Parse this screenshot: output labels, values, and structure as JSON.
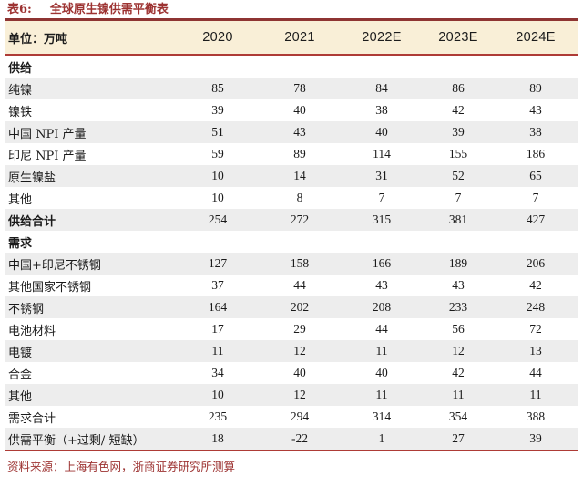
{
  "title": {
    "prefix": "表6:",
    "text": "全球原生镍供需平衡表"
  },
  "colors": {
    "accent_red": "#9D3332",
    "rule_maroon": "#8E3432",
    "rule_red": "#AE3B36",
    "header_band_bg": "#F9EFD7",
    "stripe_bg": "#EDEDED"
  },
  "table": {
    "unit_label": "单位：万吨",
    "years": [
      "2020",
      "2021",
      "2022E",
      "2023E",
      "2024E"
    ],
    "rows": [
      {
        "label": "供给",
        "values": [
          "",
          "",
          "",
          "",
          ""
        ],
        "type": "section",
        "shaded": false
      },
      {
        "label": "纯镍",
        "values": [
          "85",
          "78",
          "84",
          "86",
          "89"
        ],
        "shaded": true
      },
      {
        "label": "镍铁",
        "values": [
          "39",
          "40",
          "38",
          "42",
          "43"
        ],
        "shaded": false
      },
      {
        "label": "中国 NPI 产量",
        "values": [
          "51",
          "43",
          "40",
          "39",
          "38"
        ],
        "shaded": true
      },
      {
        "label": "印尼 NPI 产量",
        "values": [
          "59",
          "89",
          "114",
          "155",
          "186"
        ],
        "shaded": false
      },
      {
        "label": "原生镍盐",
        "values": [
          "10",
          "14",
          "31",
          "52",
          "65"
        ],
        "shaded": true
      },
      {
        "label": "其他",
        "values": [
          "10",
          "8",
          "7",
          "7",
          "7"
        ],
        "shaded": false
      },
      {
        "label": "供给合计",
        "values": [
          "254",
          "272",
          "315",
          "381",
          "427"
        ],
        "shaded": true,
        "bold": true
      },
      {
        "label": "需求",
        "values": [
          "",
          "",
          "",
          "",
          ""
        ],
        "type": "section",
        "shaded": false
      },
      {
        "label": "中国+印尼不锈钢",
        "values": [
          "127",
          "158",
          "166",
          "189",
          "206"
        ],
        "shaded": true
      },
      {
        "label": "其他国家不锈钢",
        "values": [
          "37",
          "44",
          "43",
          "43",
          "42"
        ],
        "shaded": false
      },
      {
        "label": "不锈钢",
        "values": [
          "164",
          "202",
          "208",
          "233",
          "248"
        ],
        "shaded": true
      },
      {
        "label": "电池材料",
        "values": [
          "17",
          "29",
          "44",
          "56",
          "72"
        ],
        "shaded": false
      },
      {
        "label": "电镀",
        "values": [
          "11",
          "12",
          "11",
          "12",
          "13"
        ],
        "shaded": true
      },
      {
        "label": "合金",
        "values": [
          "34",
          "40",
          "40",
          "42",
          "44"
        ],
        "shaded": false
      },
      {
        "label": "其他",
        "values": [
          "10",
          "12",
          "11",
          "11",
          "11"
        ],
        "shaded": true
      },
      {
        "label": "需求合计",
        "values": [
          "235",
          "294",
          "314",
          "354",
          "388"
        ],
        "shaded": false
      },
      {
        "label": "供需平衡（+过剩/-短缺）",
        "values": [
          "18",
          "-22",
          "1",
          "27",
          "39"
        ],
        "shaded": true
      }
    ]
  },
  "footer": {
    "source": "资料来源：上海有色网，浙商证券研究所测算"
  }
}
